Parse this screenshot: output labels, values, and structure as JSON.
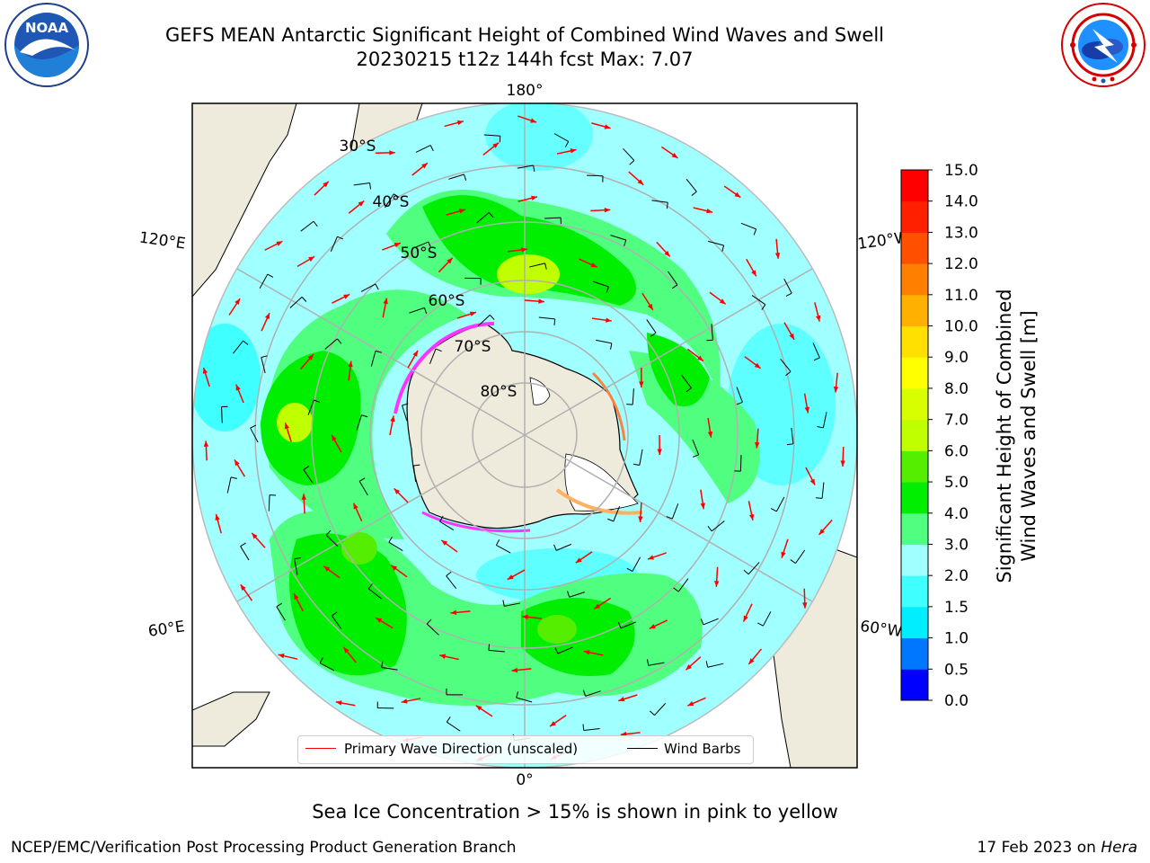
{
  "title": {
    "line1": "GEFS MEAN Antarctic Significant Height of Combined Wind Waves and Swell",
    "line2": "20230215 t12z 144h fcst   Max: 7.07"
  },
  "logos": {
    "left": {
      "icon": "noaa-logo-icon",
      "text": "NOAA"
    },
    "right": {
      "icon": "nws-logo-icon"
    }
  },
  "map": {
    "longitude_labels": [
      "180°",
      "120°E",
      "120°W",
      "60°E",
      "60°W",
      "0°"
    ],
    "latitude_labels": [
      "30°S",
      "40°S",
      "50°S",
      "60°S",
      "70°S",
      "80°S"
    ],
    "colors": {
      "land": "#efebdc",
      "ocean_outside": "#ffffff",
      "grid": "#b0b0b0",
      "wave_arrow": "#ff0000",
      "wind_barb": "#000000",
      "ice": "#ff33ff"
    }
  },
  "legend": {
    "wave_label": "Primary Wave Direction (unscaled)",
    "wave_color": "#ff0000",
    "wind_label": "Wind Barbs",
    "wind_color": "#000000"
  },
  "colorbar": {
    "label_line1": "Significant Height of Combined",
    "label_line2": "Wind Waves and Swell [m]",
    "ticks": [
      "0.0",
      "0.5",
      "1.0",
      "1.5",
      "2.0",
      "3.0",
      "4.0",
      "5.0",
      "6.0",
      "7.0",
      "8.0",
      "9.0",
      "10.0",
      "11.0",
      "12.0",
      "13.0",
      "14.0",
      "15.0"
    ],
    "colors": [
      "#0000ff",
      "#0077ff",
      "#00eeff",
      "#40ffff",
      "#a0ffff",
      "#50ff80",
      "#00ee00",
      "#55ee00",
      "#c0ff00",
      "#d8ff00",
      "#ffff00",
      "#ffe000",
      "#ffb000",
      "#ff8000",
      "#ff5000",
      "#ff2000",
      "#ff0000"
    ]
  },
  "caption": "Sea Ice Concentration > 15% is shown in pink to yellow",
  "footer": {
    "left": "NCEP/EMC/Verification Post Processing Product Generation Branch",
    "right_prefix": "17 Feb 2023 on ",
    "right_em": "Hera"
  }
}
